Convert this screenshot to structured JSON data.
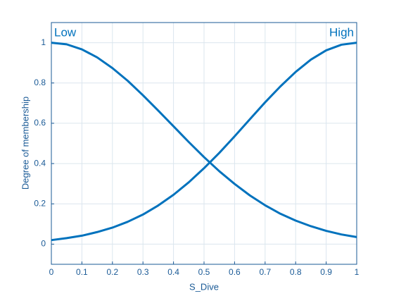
{
  "chart_data": {
    "type": "line",
    "x_label": "S_Dive",
    "y_label": "Degree of membership",
    "x": [
      0,
      0.05,
      0.1,
      0.15,
      0.2,
      0.25,
      0.3,
      0.35,
      0.4,
      0.45,
      0.5,
      0.55,
      0.6,
      0.65,
      0.7,
      0.75,
      0.8,
      0.85,
      0.9,
      0.95,
      1
    ],
    "series": [
      {
        "name": "Low",
        "color": "#0072bd",
        "values": [
          1,
          0.992,
          0.967,
          0.927,
          0.874,
          0.811,
          0.739,
          0.663,
          0.585,
          0.507,
          0.432,
          0.362,
          0.299,
          0.242,
          0.193,
          0.151,
          0.117,
          0.089,
          0.066,
          0.048,
          0.035
        ]
      },
      {
        "name": "High",
        "color": "#0072bd",
        "values": [
          0.02,
          0.03,
          0.042,
          0.06,
          0.082,
          0.111,
          0.147,
          0.192,
          0.245,
          0.307,
          0.377,
          0.453,
          0.535,
          0.62,
          0.704,
          0.783,
          0.855,
          0.916,
          0.962,
          0.99,
          1
        ]
      }
    ],
    "xlim": [
      0,
      1
    ],
    "xticks": [
      0,
      0.1,
      0.2,
      0.3,
      0.4,
      0.5,
      0.6,
      0.7,
      0.8,
      0.9,
      1
    ],
    "ylim": [
      -0.1,
      1.1
    ],
    "yticks": [
      0,
      0.2,
      0.4,
      0.6,
      0.8,
      1
    ],
    "grid": true
  }
}
